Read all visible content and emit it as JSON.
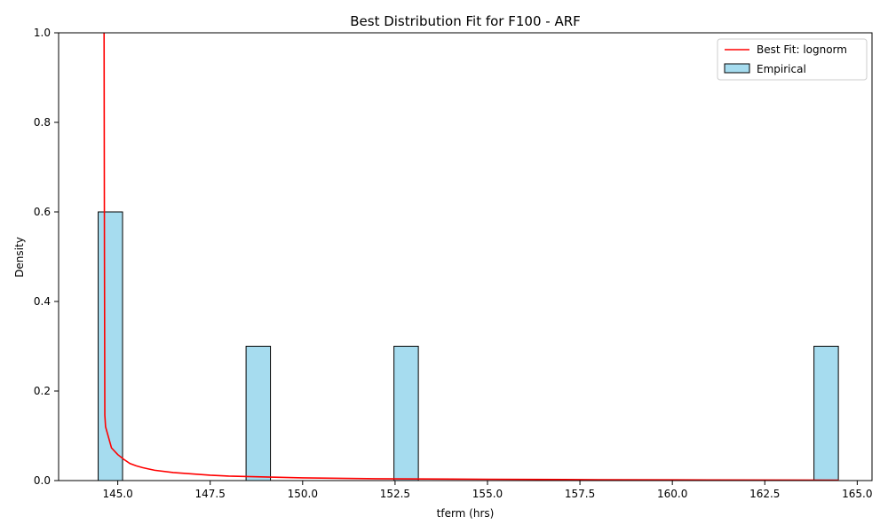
{
  "chart_data": {
    "type": "bar",
    "title": "Best Distribution Fit for F100 - ARF",
    "xlabel": "tferm (hrs)",
    "ylabel": "Density",
    "xlim": [
      143.4,
      165.4
    ],
    "ylim": [
      0,
      1.0
    ],
    "xticks": [
      145.0,
      147.5,
      150.0,
      152.5,
      155.0,
      157.5,
      160.0,
      162.5,
      165.0
    ],
    "xtick_labels": [
      "145.0",
      "147.5",
      "150.0",
      "152.5",
      "155.0",
      "157.5",
      "160.0",
      "162.5",
      "165.0"
    ],
    "yticks": [
      0.0,
      0.2,
      0.4,
      0.6,
      0.8,
      1.0
    ],
    "ytick_labels": [
      "0.0",
      "0.2",
      "0.4",
      "0.6",
      "0.8",
      "1.0"
    ],
    "grid": false,
    "legend_position": "top-right",
    "histogram": {
      "name": "Empirical",
      "color": "#a6dcef",
      "edge_color": "#000000",
      "bins": [
        {
          "x0": 144.47,
          "x1": 145.13,
          "density": 0.6
        },
        {
          "x0": 148.47,
          "x1": 149.13,
          "density": 0.3
        },
        {
          "x0": 152.47,
          "x1": 153.13,
          "density": 0.3
        },
        {
          "x0": 163.83,
          "x1": 164.49,
          "density": 0.3
        }
      ]
    },
    "fit_line": {
      "name": "Best Fit: lognorm",
      "color": "#ff0000",
      "x": [
        144.63,
        144.64,
        144.65,
        144.67,
        144.83,
        145.0,
        145.17,
        145.33,
        145.5,
        145.67,
        145.83,
        146.0,
        146.5,
        147.0,
        147.5,
        148.0,
        149.0,
        150.0,
        152.0,
        155.0,
        158.0,
        161.0,
        164.5
      ],
      "y": [
        1.0,
        0.5,
        0.146,
        0.12,
        0.073,
        0.058,
        0.047,
        0.038,
        0.033,
        0.029,
        0.026,
        0.023,
        0.018,
        0.015,
        0.012,
        0.01,
        0.008,
        0.006,
        0.004,
        0.003,
        0.002,
        0.0015,
        0.001
      ]
    }
  }
}
